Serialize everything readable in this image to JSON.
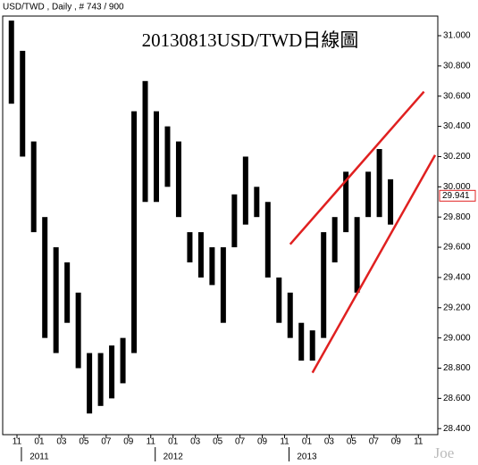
{
  "header": "USD/TWD , Daily , # 743 / 900",
  "watermark": "Joe",
  "chart_data": {
    "type": "range",
    "title": "20130813USD/TWD日線圖",
    "x": [
      "2010-10",
      "2010-11",
      "2010-12",
      "2011-01",
      "2011-02",
      "2011-03",
      "2011-04",
      "2011-05",
      "2011-06",
      "2011-07",
      "2011-08",
      "2011-09",
      "2011-10",
      "2011-11",
      "2011-12",
      "2012-01",
      "2012-02",
      "2012-03",
      "2012-04",
      "2012-05",
      "2012-06",
      "2012-07",
      "2012-08",
      "2012-09",
      "2012-10",
      "2012-11",
      "2012-12",
      "2013-01",
      "2013-02",
      "2013-03",
      "2013-04",
      "2013-05",
      "2013-06",
      "2013-07",
      "2013-08"
    ],
    "series": [
      {
        "name": "High",
        "color": "#000000",
        "values": [
          31.1,
          30.9,
          30.3,
          29.8,
          29.6,
          29.5,
          29.3,
          28.9,
          28.9,
          28.95,
          29.0,
          30.5,
          30.7,
          30.5,
          30.4,
          30.3,
          29.7,
          29.7,
          29.6,
          29.6,
          29.95,
          30.2,
          30.0,
          29.9,
          29.4,
          29.3,
          29.1,
          29.05,
          29.7,
          29.8,
          30.1,
          29.8,
          30.1,
          30.25,
          30.05
        ]
      },
      {
        "name": "Low",
        "color": "#000000",
        "values": [
          30.55,
          30.2,
          29.7,
          29.0,
          28.9,
          29.1,
          28.8,
          28.5,
          28.55,
          28.6,
          28.7,
          28.9,
          29.9,
          29.9,
          30.0,
          29.8,
          29.5,
          29.4,
          29.35,
          29.1,
          29.6,
          29.75,
          29.8,
          29.4,
          29.1,
          29.0,
          28.85,
          28.85,
          29.0,
          29.5,
          29.7,
          29.3,
          29.8,
          29.8,
          29.75
        ]
      }
    ],
    "last_value": {
      "value": 29.941,
      "label": "29.941"
    },
    "trendlines": [
      {
        "color": "#e02020",
        "x": [
          "2012-11",
          "2013-11"
        ],
        "values": [
          29.62,
          30.63
        ]
      },
      {
        "color": "#e02020",
        "x": [
          "2013-01",
          "2013-12"
        ],
        "values": [
          28.77,
          30.21
        ]
      }
    ],
    "ylim": [
      28.36,
      31.13
    ],
    "yticks": [
      {
        "value": 28.4,
        "label": "28.400"
      },
      {
        "value": 28.6,
        "label": "28.600"
      },
      {
        "value": 28.8,
        "label": "28.800"
      },
      {
        "value": 29.0,
        "label": "29.000"
      },
      {
        "value": 29.2,
        "label": "29.200"
      },
      {
        "value": 29.4,
        "label": "29.400"
      },
      {
        "value": 29.6,
        "label": "29.600"
      },
      {
        "value": 29.8,
        "label": "29.800"
      },
      {
        "value": 30.0,
        "label": "30.000"
      },
      {
        "value": 30.2,
        "label": "30.200"
      },
      {
        "value": 30.4,
        "label": "30.400"
      },
      {
        "value": 30.6,
        "label": "30.600"
      },
      {
        "value": 30.8,
        "label": "30.800"
      },
      {
        "value": 31.0,
        "label": "31.000"
      }
    ],
    "xticks": [
      {
        "value": "2010-11",
        "label": "11"
      },
      {
        "value": "2011-01",
        "label": "01"
      },
      {
        "value": "2011-03",
        "label": "03"
      },
      {
        "value": "2011-05",
        "label": "05"
      },
      {
        "value": "2011-07",
        "label": "07"
      },
      {
        "value": "2011-09",
        "label": "09"
      },
      {
        "value": "2011-11",
        "label": "11"
      },
      {
        "value": "2012-01",
        "label": "01"
      },
      {
        "value": "2012-03",
        "label": "03"
      },
      {
        "value": "2012-05",
        "label": "05"
      },
      {
        "value": "2012-07",
        "label": "07"
      },
      {
        "value": "2012-09",
        "label": "09"
      },
      {
        "value": "2012-11",
        "label": "11"
      },
      {
        "value": "2013-01",
        "label": "01"
      },
      {
        "value": "2013-03",
        "label": "03"
      },
      {
        "value": "2013-05",
        "label": "05"
      },
      {
        "value": "2013-07",
        "label": "07"
      },
      {
        "value": "2013-09",
        "label": "09"
      },
      {
        "value": "2013-11",
        "label": "11"
      }
    ],
    "year_labels": [
      {
        "value": "2011-01",
        "label": "2011"
      },
      {
        "value": "2012-01",
        "label": "2012"
      },
      {
        "value": "2013-01",
        "label": "2013"
      }
    ]
  }
}
